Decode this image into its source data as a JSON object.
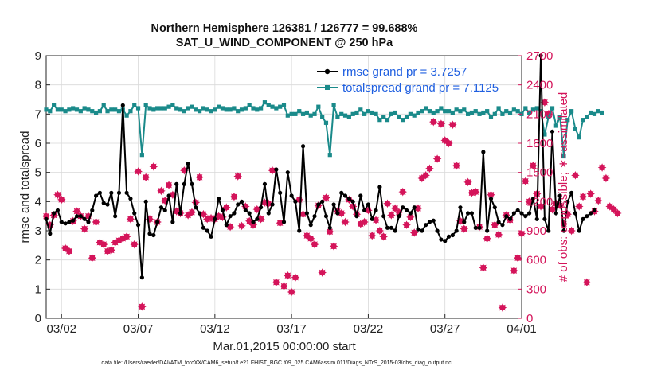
{
  "chart_data": {
    "type": "line",
    "title": "Northern Hemisphere 126381 / 126777 = 99.688%",
    "subtitle": "SAT_U_WIND_COMPONENT @ 250 hPa",
    "xlabel": "Mar.01,2015 00:00:00 start",
    "ylabel": "rmse and totalspread",
    "y2label": "# of obs: o=possible; ∗=assimilated",
    "footer": "data file: /Users/raeder/DAI/ATM_forcXX/CAM6_setup/f.e21.FHIST_BGC.f09_025.CAM6assim.011/Diags_NTrS_2015-03/obs_diag_output.nc",
    "x_ticks": [
      "03/02",
      "03/07",
      "03/12",
      "03/17",
      "03/22",
      "03/27",
      "04/01"
    ],
    "x_tick_days": [
      1,
      6,
      11,
      16,
      21,
      26,
      31
    ],
    "xlim_days": [
      0,
      31
    ],
    "ylim": [
      0,
      9
    ],
    "y_ticks": [
      "0",
      "1",
      "2",
      "3",
      "4",
      "5",
      "6",
      "7",
      "8",
      "9"
    ],
    "y2lim": [
      0,
      2700
    ],
    "y2_ticks": [
      "0",
      "300",
      "600",
      "900",
      "1200",
      "1500",
      "1800",
      "2100",
      "2400",
      "2700"
    ],
    "grid": true,
    "legend_position": "top-right",
    "colors": {
      "rmse": "#000000",
      "spread": "#1a8a8a",
      "obs": "#d4145a",
      "legend_text": "#1f5fe0"
    },
    "series": [
      {
        "name": "rmse grand pr = 3.7257",
        "marker": "circle",
        "x_start_day": 0,
        "step_days": 0.25,
        "values": [
          3.4,
          2.9,
          3.6,
          3.7,
          3.3,
          3.25,
          3.3,
          3.35,
          3.5,
          3.5,
          3.4,
          3.3,
          3.7,
          4.2,
          4.3,
          3.95,
          3.9,
          4.3,
          3.5,
          4.3,
          7.3,
          4.3,
          4.1,
          3.6,
          3.2,
          1.4,
          4.0,
          2.9,
          2.85,
          3.3,
          3.8,
          3.7,
          4.2,
          3.3,
          4.6,
          3.6,
          4.6,
          5.3,
          4.6,
          3.8,
          3.6,
          3.1,
          3.0,
          2.8,
          3.4,
          4.1,
          3.7,
          3.2,
          3.5,
          3.6,
          3.9,
          4.0,
          3.7,
          3.6,
          3.3,
          3.4,
          3.8,
          4.6,
          3.6,
          3.9,
          5.1,
          4.3,
          3.3,
          5.0,
          4.2,
          4.0,
          3.0,
          5.9,
          3.6,
          3.2,
          3.5,
          3.9,
          4.0,
          3.5,
          3.1,
          3.9,
          3.6,
          4.3,
          4.2,
          4.1,
          4.0,
          3.5,
          4.2,
          3.7,
          3.9,
          3.4,
          3.7,
          4.5,
          3.5,
          3.1,
          3.1,
          3.0,
          3.5,
          3.8,
          3.7,
          3.6,
          3.8,
          3.05,
          3.0,
          3.2,
          3.3,
          3.35,
          3.0,
          2.7,
          2.65,
          2.8,
          2.85,
          3.0,
          3.8,
          3.3,
          3.6,
          3.6,
          3.1,
          3.1,
          5.7,
          3.0,
          4.1,
          3.8,
          3.3,
          3.2,
          3.5,
          3.4,
          3.6,
          3.7,
          3.6,
          3.5,
          3.6,
          4.1,
          3.4,
          9.0,
          3.4,
          3.0,
          6.4,
          3.6,
          4.2,
          3.0,
          4.0,
          4.3,
          3.6,
          3.0,
          3.4,
          3.5,
          3.6,
          3.7
        ]
      },
      {
        "name": "totalspread grand pr = 7.1125",
        "marker": "square",
        "x_start_day": 0,
        "step_days": 0.25,
        "values": [
          7.15,
          7.1,
          7.3,
          7.15,
          7.15,
          7.1,
          7.15,
          7.2,
          7.15,
          7.1,
          7.2,
          7.15,
          7.1,
          7.05,
          7.1,
          7.3,
          7.1,
          7.15,
          7.15,
          7.1,
          7.15,
          6.95,
          7.1,
          7.3,
          7.2,
          5.6,
          7.3,
          7.2,
          7.15,
          7.2,
          7.2,
          7.2,
          7.25,
          7.3,
          7.2,
          7.15,
          7.1,
          7.2,
          7.25,
          7.15,
          7.1,
          7.2,
          7.15,
          7.1,
          7.15,
          7.25,
          7.2,
          7.15,
          7.15,
          7.2,
          7.1,
          7.15,
          7.2,
          7.3,
          7.2,
          7.15,
          7.2,
          7.4,
          7.3,
          7.25,
          7.2,
          7.25,
          7.3,
          6.95,
          7.0,
          7.0,
          7.1,
          7.0,
          7.05,
          6.95,
          7.0,
          7.25,
          6.9,
          6.7,
          5.6,
          7.3,
          6.9,
          7.0,
          6.95,
          6.9,
          7.0,
          7.05,
          7.15,
          7.0,
          7.1,
          7.05,
          7.0,
          6.8,
          6.9,
          6.8,
          7.0,
          7.05,
          6.9,
          6.8,
          6.9,
          7.0,
          6.95,
          7.05,
          7.1,
          7.2,
          7.1,
          7.05,
          7.1,
          7.2,
          7.1,
          7.1,
          7.05,
          7.15,
          7.1,
          7.15,
          7.0,
          7.05,
          7.1,
          7.0,
          7.05,
          7.1,
          6.9,
          7.0,
          7.2,
          7.0,
          7.1,
          7.05,
          7.15,
          7.1,
          7.0,
          7.2,
          7.05,
          7.15,
          7.2,
          7.1,
          6.3,
          6.9,
          7.2,
          6.6,
          6.9,
          5.55,
          6.8,
          7.1,
          6.5,
          6.2,
          6.8,
          6.9,
          7.05,
          7.0,
          7.1,
          7.05
        ]
      }
    ],
    "obs_assimilated": {
      "marker": "star",
      "x_start_day": 0,
      "step_days": 0.25,
      "values": [
        1050,
        960,
        1060,
        1270,
        1220,
        720,
        690,
        1000,
        1100,
        1050,
        920,
        1050,
        620,
        990,
        780,
        760,
        690,
        700,
        780,
        800,
        820,
        840,
        1020,
        760,
        1510,
        120,
        1450,
        1020,
        1560,
        990,
        1310,
        1210,
        1370,
        1270,
        1100,
        1080,
        1520,
        1060,
        1090,
        1190,
        1450,
        1070,
        1020,
        1030,
        1020,
        1050,
        1040,
        1140,
        940,
        1250,
        1460,
        950,
        1150,
        1000,
        960,
        1120,
        1020,
        1190,
        1180,
        1520,
        370,
        980,
        330,
        440,
        270,
        420,
        1220,
        1070,
        850,
        820,
        760,
        1160,
        470,
        1240,
        890,
        740,
        1100,
        1080,
        990,
        1220,
        1150,
        1070,
        970,
        990,
        1110,
        850,
        1010,
        900,
        840,
        1180,
        1060,
        1130,
        1090,
        1300,
        960,
        1040,
        880,
        1130,
        1440,
        1470,
        1540,
        2020,
        1640,
        2000,
        1830,
        1800,
        1990,
        1570,
        1000,
        920,
        1400,
        1290,
        1300,
        940,
        520,
        820,
        1270,
        960,
        860,
        110,
        1060,
        1010,
        490,
        620,
        870,
        1410,
        1200,
        1570,
        1280,
        1150,
        2220,
        2100,
        1120,
        1180,
        1160,
        970,
        1070,
        900,
        1470,
        1150,
        1250,
        370,
        1280,
        1100,
        1210,
        1550,
        1440,
        1150,
        1120,
        1080
      ]
    },
    "obs_possible": {
      "marker": "circle",
      "x_start_day": 0,
      "step_days": 0.25,
      "values": [
        1050,
        960,
        1060,
        1270,
        1220,
        720,
        690,
        1000,
        1100,
        1050,
        920,
        1050,
        620,
        990,
        780,
        760,
        690,
        700,
        780,
        800,
        820,
        840,
        1020,
        760,
        1510,
        120,
        1450,
        1020,
        1560,
        990,
        1310,
        1210,
        1370,
        1270,
        1100,
        1080,
        1520,
        1060,
        1090,
        1190,
        1450,
        1070,
        1020,
        1030,
        1020,
        1050,
        1040,
        1140,
        940,
        1250,
        1460,
        950,
        1150,
        1000,
        960,
        1120,
        1020,
        1190,
        1180,
        1520,
        370,
        980,
        330,
        440,
        270,
        420,
        1220,
        1070,
        850,
        820,
        760,
        1160,
        470,
        1240,
        890,
        740,
        1100,
        1080,
        990,
        1220,
        1150,
        1070,
        970,
        990,
        1110,
        850,
        1010,
        900,
        840,
        1180,
        1060,
        1130,
        1090,
        1300,
        960,
        1040,
        880,
        1130,
        1440,
        1470,
        1540,
        2020,
        1640,
        2000,
        1830,
        1800,
        1990,
        1570,
        1000,
        920,
        1400,
        1290,
        1300,
        940,
        520,
        820,
        1270,
        960,
        860,
        110,
        1060,
        1010,
        490,
        620,
        870,
        1410,
        1200,
        1570,
        1280,
        1150,
        2220,
        2100,
        1120,
        1180,
        1160,
        970,
        1070,
        900,
        1470,
        1150,
        1250,
        370,
        1280,
        1100,
        1210,
        1550,
        1440,
        1150,
        1120,
        1080
      ]
    }
  }
}
